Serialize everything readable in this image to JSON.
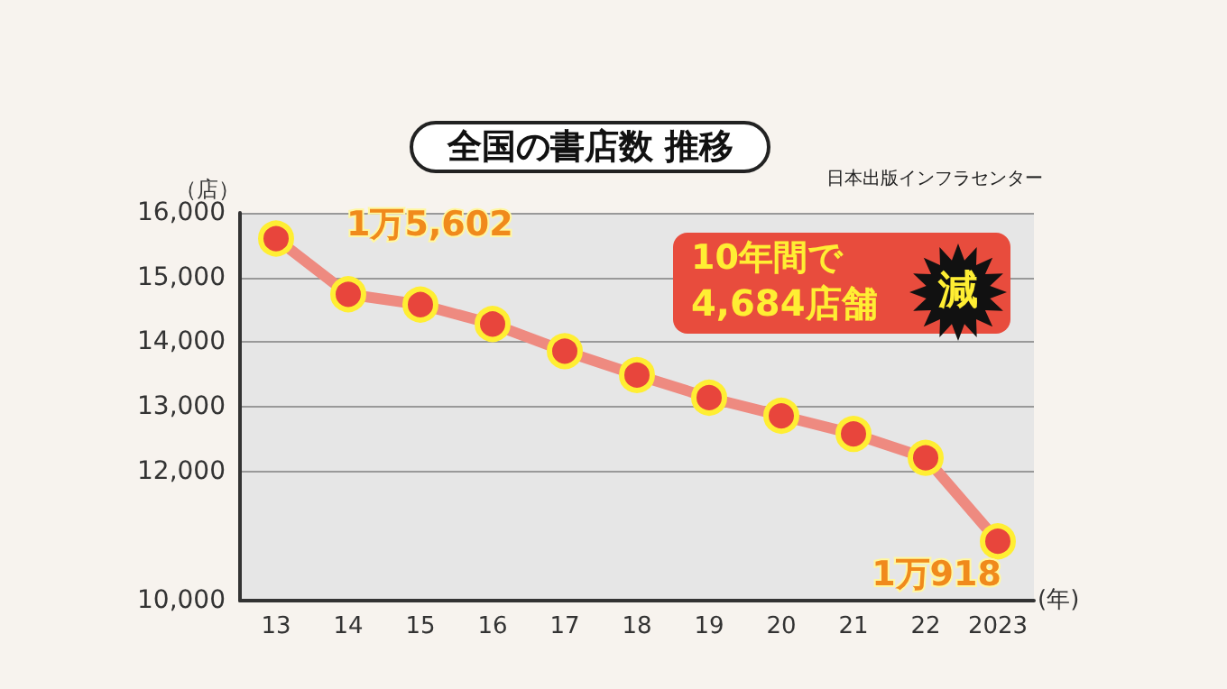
{
  "chart_data": {
    "type": "line",
    "title": "全国の書店数 推移",
    "ylabel": "（店）",
    "xlabel": "(年)",
    "categories": [
      "13",
      "14",
      "15",
      "16",
      "17",
      "18",
      "19",
      "20",
      "21",
      "22",
      "2023"
    ],
    "series": [
      {
        "color": "#e8453c",
        "values": [
          15602,
          14740,
          14580,
          14280,
          13860,
          13490,
          13140,
          12860,
          12580,
          12210,
          10918
        ]
      }
    ],
    "ylim": [
      10000,
      16000
    ],
    "yticks": [
      {
        "value": 10000,
        "label": "10,000"
      },
      {
        "value": 12000,
        "label": "12,000"
      },
      {
        "value": 13000,
        "label": "13,000"
      },
      {
        "value": 14000,
        "label": "14,000"
      },
      {
        "value": 15000,
        "label": "15,000"
      },
      {
        "value": 16000,
        "label": "16,000"
      }
    ],
    "grid": "y",
    "marker": "circle",
    "line_style": "solid",
    "annotations": [
      {
        "text": "1万5,602",
        "x": "13",
        "y": 15602
      },
      {
        "text": "1万918",
        "x": "2023",
        "y": 10918
      },
      "10年間で",
      "4,684店舗",
      "減",
      "日本出版インフラセンター"
    ]
  }
}
